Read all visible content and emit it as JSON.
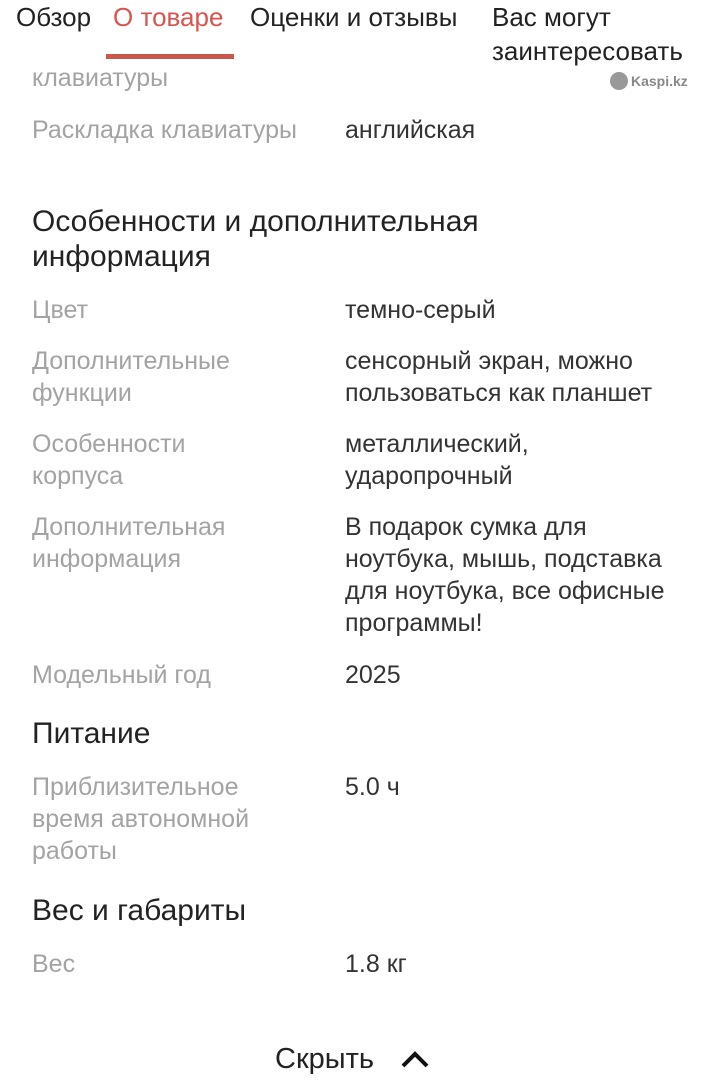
{
  "tabs": [
    {
      "label": "Обзор"
    },
    {
      "label": "О товаре",
      "active": true
    },
    {
      "label": "Оценки и отзывы"
    },
    {
      "label": "Вас могут заинтересовать"
    }
  ],
  "watermark": "Kaspi.kz",
  "specs": {
    "partial_label": "клавиатуры",
    "layout": {
      "label": "Раскладка клавиатуры",
      "value": "английская"
    },
    "section1": "Особенности и дополнительная информация",
    "color": {
      "label": "Цвет",
      "value": "темно-серый"
    },
    "extra_functions": {
      "label": "Дополнительные функции",
      "value": "сенсорный экран, можно пользоваться как планшет"
    },
    "body": {
      "label": "Особенности корпуса",
      "value": "металлический, ударопрочный"
    },
    "extra_info": {
      "label": "Дополнительная информация",
      "value": "В подарок сумка для ноутбука, мышь, подставка для ноутбука, все офисные программы!"
    },
    "year": {
      "label": "Модельный год",
      "value": "2025"
    },
    "section2": "Питание",
    "battery": {
      "label": "Приблизительное время автономной работы",
      "value": "5.0 ч"
    },
    "section3": "Вес и габариты",
    "weight": {
      "label": "Вес",
      "value": "1.8 кг"
    }
  },
  "hide_label": "Скрыть",
  "accent": "#d9534f"
}
